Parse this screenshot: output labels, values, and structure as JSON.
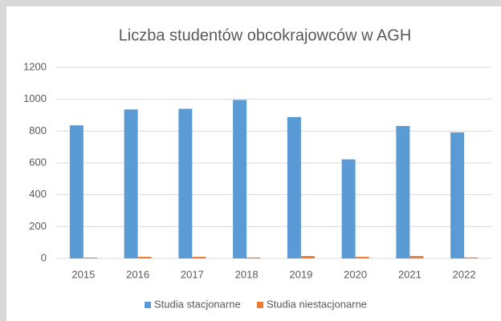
{
  "chart_data": {
    "type": "bar",
    "title": "Liczba studentów obcokrajowców w AGH",
    "categories": [
      "2015",
      "2016",
      "2017",
      "2018",
      "2019",
      "2020",
      "2021",
      "2022"
    ],
    "series": [
      {
        "name": "Studia stacjonarne",
        "color": "#5b9bd5",
        "values": [
          836,
          936,
          940,
          996,
          888,
          622,
          832,
          792
        ]
      },
      {
        "name": "Studia niestacjonarne",
        "color": "#ed7d31",
        "values": [
          5,
          10,
          10,
          6,
          15,
          10,
          15,
          6
        ]
      }
    ],
    "ylim": [
      0,
      1200
    ],
    "yticks": [
      0,
      200,
      400,
      600,
      800,
      1000,
      1200
    ],
    "grid": true,
    "legend": "bottom"
  }
}
